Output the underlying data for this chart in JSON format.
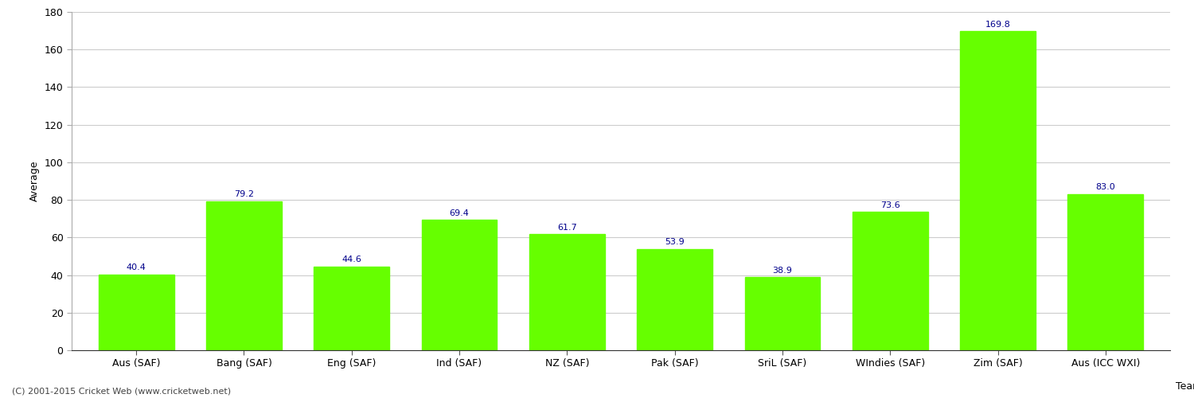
{
  "title": "",
  "xlabel_right": "Team",
  "ylabel": "Average",
  "categories": [
    "Aus (SAF)",
    "Bang (SAF)",
    "Eng (SAF)",
    "Ind (SAF)",
    "NZ (SAF)",
    "Pak (SAF)",
    "SriL (SAF)",
    "WIndies (SAF)",
    "Zim (SAF)",
    "Aus (ICC WXI)"
  ],
  "values": [
    40.4,
    79.2,
    44.6,
    69.4,
    61.7,
    53.9,
    38.9,
    73.6,
    169.8,
    83.0
  ],
  "bar_color": "#66ff00",
  "bar_edge_color": "#66ff00",
  "value_color": "#00008B",
  "ylim": [
    0,
    180
  ],
  "yticks": [
    0,
    20,
    40,
    60,
    80,
    100,
    120,
    140,
    160,
    180
  ],
  "background_color": "#ffffff",
  "grid_color": "#cccccc",
  "footnote": "(C) 2001-2015 Cricket Web (www.cricketweb.net)",
  "axis_label_fontsize": 9,
  "tick_fontsize": 9,
  "value_fontsize": 8,
  "footnote_fontsize": 8,
  "bar_width": 0.7
}
